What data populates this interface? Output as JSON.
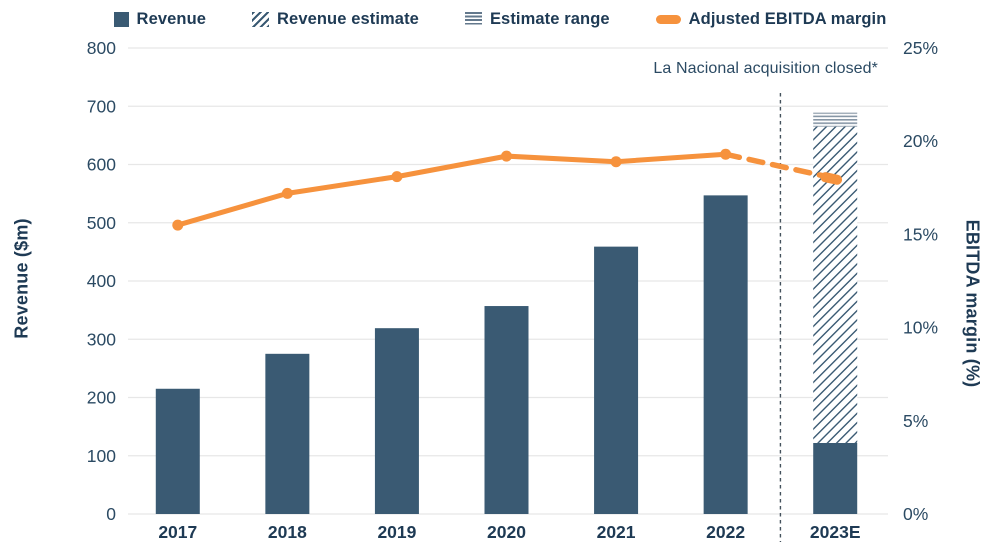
{
  "legend": {
    "items": [
      {
        "id": "revenue",
        "label": "Revenue"
      },
      {
        "id": "revenue-estimate",
        "label": "Revenue estimate"
      },
      {
        "id": "estimate-range",
        "label": "Estimate range"
      },
      {
        "id": "ebitda-margin",
        "label": "Adjusted EBITDA margin"
      }
    ]
  },
  "annotation": {
    "text": "La Nacional acquisition closed*"
  },
  "chart_data": {
    "type": "bar+line",
    "categories": [
      "2017",
      "2018",
      "2019",
      "2020",
      "2021",
      "2022",
      "2023E"
    ],
    "left_axis": {
      "title": "Revenue ($m)",
      "min": 0,
      "max": 800,
      "tick_step": 100,
      "tick_labels": [
        "0",
        "100",
        "200",
        "300",
        "400",
        "500",
        "600",
        "700",
        "800"
      ]
    },
    "right_axis": {
      "title": "EBITDA margin (%)",
      "min": 0,
      "max": 25,
      "tick_step": 5,
      "tick_labels": [
        "0%",
        "5%",
        "10%",
        "15%",
        "20%",
        "25%"
      ]
    },
    "series": [
      {
        "name": "Revenue",
        "type": "bar",
        "axis": "left",
        "values": [
          215,
          275,
          319,
          357,
          459,
          547,
          122
        ]
      },
      {
        "name": "Revenue estimate",
        "type": "bar-hatched",
        "axis": "left",
        "category": "2023E",
        "from": 122,
        "to": 665
      },
      {
        "name": "Estimate range",
        "type": "bar-striped-band",
        "axis": "left",
        "category": "2023E",
        "from": 665,
        "to": 689
      },
      {
        "name": "Adjusted EBITDA margin",
        "type": "line",
        "axis": "right",
        "values": [
          15.5,
          17.2,
          18.1,
          19.2,
          18.9,
          19.3,
          18.0
        ],
        "dashed_from_index": 5
      }
    ],
    "divider": {
      "between": [
        "2022",
        "2023E"
      ],
      "style": "dashed-vertical"
    },
    "grid": "horizontal",
    "legend_position": "top"
  },
  "colors": {
    "bar": "#3a5a73",
    "line": "#f6923d",
    "text": "#1e3a54",
    "tick_text": "#2b4a63",
    "grid": "#e7e7e7",
    "range_stripe": "#8696a5",
    "vline": "#44525d",
    "background": "#ffffff"
  }
}
